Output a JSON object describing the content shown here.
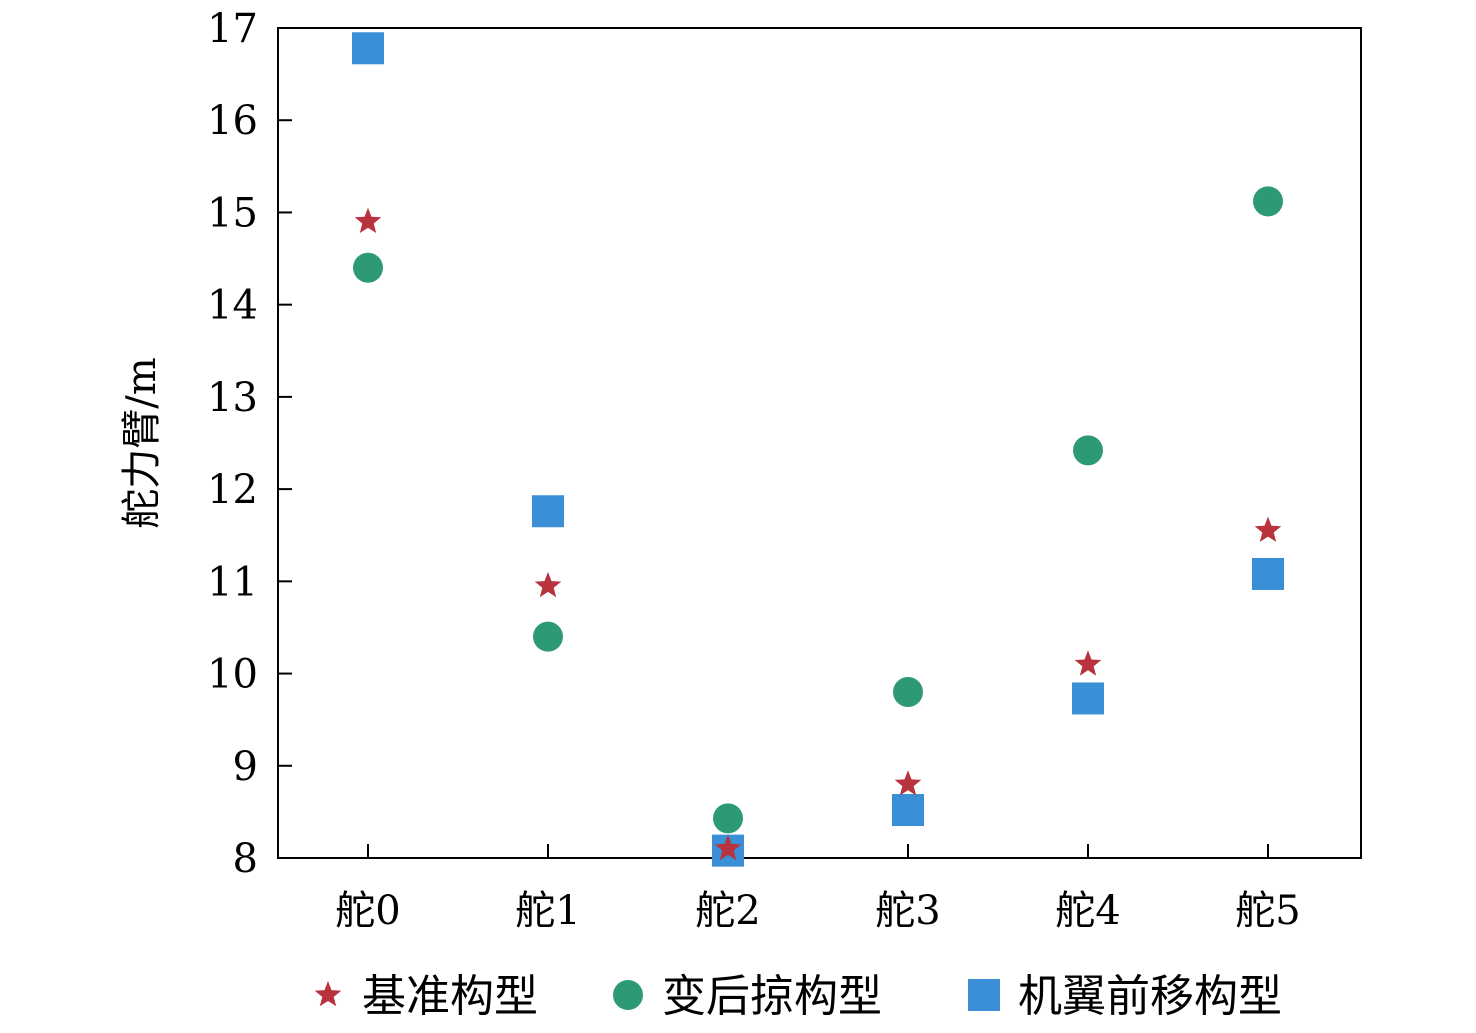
{
  "chart_data": {
    "type": "scatter",
    "title": "",
    "xlabel": "",
    "ylabel": "舵力臂/m",
    "categories": [
      "舵0",
      "舵1",
      "舵2",
      "舵3",
      "舵4",
      "舵5"
    ],
    "ylim": [
      8,
      17
    ],
    "yticks": [
      8,
      9,
      10,
      11,
      12,
      13,
      14,
      15,
      16,
      17
    ],
    "grid": false,
    "legend_position": "bottom",
    "series": [
      {
        "name": "基准构型",
        "marker": "star",
        "color": "#b8333d",
        "values": [
          14.9,
          10.95,
          8.1,
          8.8,
          10.1,
          11.55
        ]
      },
      {
        "name": "变后掠构型",
        "marker": "circle",
        "color": "#2e9a74",
        "values": [
          14.4,
          10.4,
          8.43,
          9.8,
          12.42,
          15.12
        ]
      },
      {
        "name": "机翼前移构型",
        "marker": "square",
        "color": "#3a8fd6",
        "values": [
          16.78,
          11.76,
          8.08,
          8.52,
          9.73,
          11.08
        ]
      }
    ]
  }
}
